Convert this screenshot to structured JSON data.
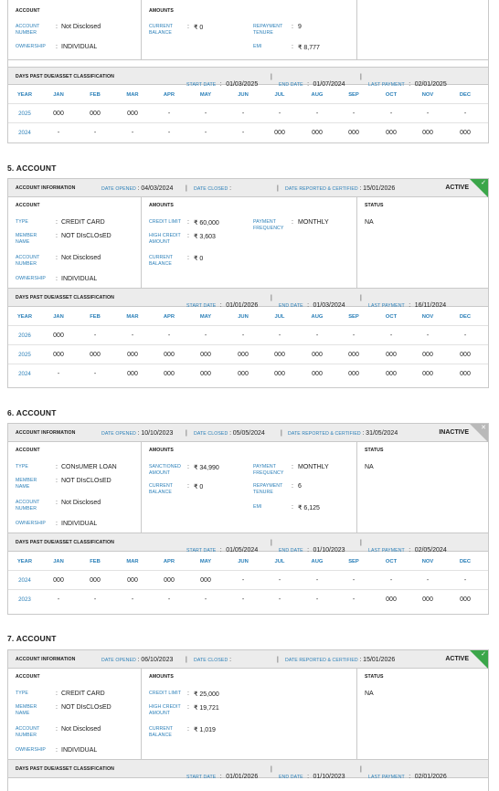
{
  "month_headers": [
    "YEAR",
    "JAN",
    "FEB",
    "MAR",
    "APR",
    "MAY",
    "JUN",
    "JUL",
    "AUG",
    "SEP",
    "OCT",
    "NOV",
    "DEC"
  ],
  "labels": {
    "account": "ACCOUNT",
    "amounts": "AMOUNTS",
    "status": "STATUS",
    "account_information": "ACCOUNT INFORMATION",
    "date_opened": "DATE OPENED",
    "date_closed": "DATE CLOSED",
    "date_reported": "DATE REPORTED & CERTIFIED",
    "dpd": "DAYS PAST DUE/ASSET CLASSIFICATION",
    "start_date": "START DATE",
    "end_date": "END DATE",
    "last_payment": "LAST PAYMENT",
    "type": "TYPE",
    "member_name": "MEMBER NAME",
    "account_number": "ACCOUNT NUMBER",
    "ownership": "OWNERSHIP",
    "credit_limit": "CREDIT LIMIT",
    "high_credit_amount": "HIGH CREDIT AMOUNT",
    "current_balance": "CURRENT BALANCE",
    "payment_frequency": "PAYMENT FREQUENCY",
    "sanctioned_amount": "SANCTIONED AMOUNT",
    "repayment_tenure": "REPAYMENT TENURE",
    "emi": "EMI"
  },
  "account4": {
    "account_number": "Not Disclosed",
    "ownership": "INDIVIDUAL",
    "current_balance": "₹ 0",
    "repayment_tenure": "9",
    "emi": "₹ 8,777",
    "start_date": "01/03/2025",
    "end_date": "01/07/2024",
    "last_payment": "02/01/2025",
    "rows": [
      [
        "2025",
        "000",
        "000",
        "000",
        "-",
        "-",
        "-",
        "-",
        "-",
        "-",
        "-",
        "-",
        "-"
      ],
      [
        "2024",
        "-",
        "-",
        "-",
        "-",
        "-",
        "-",
        "000",
        "000",
        "000",
        "000",
        "000",
        "000"
      ]
    ]
  },
  "account5": {
    "title": "5. ACCOUNT",
    "status_badge": "ACTIVE",
    "date_opened": "04/03/2024",
    "date_closed": "",
    "date_reported": "15/01/2026",
    "type": "CREDIT CARD",
    "member_name": "NOT DIsCLOsED",
    "account_number": "Not Disclosed",
    "ownership": "INDIVIDUAL",
    "credit_limit": "₹ 60,000",
    "high_credit_amount": "₹ 3,603",
    "current_balance": "₹ 0",
    "payment_frequency": "MONTHLY",
    "status": "NA",
    "start_date": "01/01/2026",
    "end_date": "01/03/2024",
    "last_payment": "16/11/2024",
    "rows": [
      [
        "2026",
        "000",
        "-",
        "-",
        "-",
        "-",
        "-",
        "-",
        "-",
        "-",
        "-",
        "-",
        "-"
      ],
      [
        "2025",
        "000",
        "000",
        "000",
        "000",
        "000",
        "000",
        "000",
        "000",
        "000",
        "000",
        "000",
        "000"
      ],
      [
        "2024",
        "-",
        "-",
        "000",
        "000",
        "000",
        "000",
        "000",
        "000",
        "000",
        "000",
        "000",
        "000"
      ]
    ]
  },
  "account6": {
    "title": "6. ACCOUNT",
    "status_badge": "INACTIVE",
    "date_opened": "10/10/2023",
    "date_closed": "05/05/2024",
    "date_reported": "31/05/2024",
    "type": "CONsUMER LOAN",
    "member_name": "NOT DIsCLOsED",
    "account_number": "Not Disclosed",
    "ownership": "INDIVIDUAL",
    "sanctioned_amount": "₹ 34,990",
    "current_balance": "₹ 0",
    "payment_frequency": "MONTHLY",
    "repayment_tenure": "6",
    "emi": "₹ 6,125",
    "status": "NA",
    "start_date": "01/05/2024",
    "end_date": "01/10/2023",
    "last_payment": "02/05/2024",
    "rows": [
      [
        "2024",
        "000",
        "000",
        "000",
        "000",
        "000",
        "-",
        "-",
        "-",
        "-",
        "-",
        "-",
        "-"
      ],
      [
        "2023",
        "-",
        "-",
        "-",
        "-",
        "-",
        "-",
        "-",
        "-",
        "-",
        "000",
        "000",
        "000"
      ]
    ]
  },
  "account7": {
    "title": "7. ACCOUNT",
    "status_badge": "ACTIVE",
    "date_opened": "06/10/2023",
    "date_closed": "",
    "date_reported": "15/01/2026",
    "type": "CREDIT CARD",
    "member_name": "NOT DIsCLOsED",
    "account_number": "Not Disclosed",
    "ownership": "INDIVIDUAL",
    "credit_limit": "₹ 25,000",
    "high_credit_amount": "₹ 19,721",
    "current_balance": "₹ 1,019",
    "status": "NA",
    "start_date": "01/01/2026",
    "end_date": "01/10/2023",
    "last_payment": "02/01/2026"
  },
  "colors": {
    "accent_blue": "#2a7fb8",
    "active_green": "#3ba64a",
    "inactive_grey": "#b9b9b9",
    "header_bg": "#ececec"
  },
  "icons": {
    "active": "check-icon",
    "inactive": "close-icon"
  }
}
